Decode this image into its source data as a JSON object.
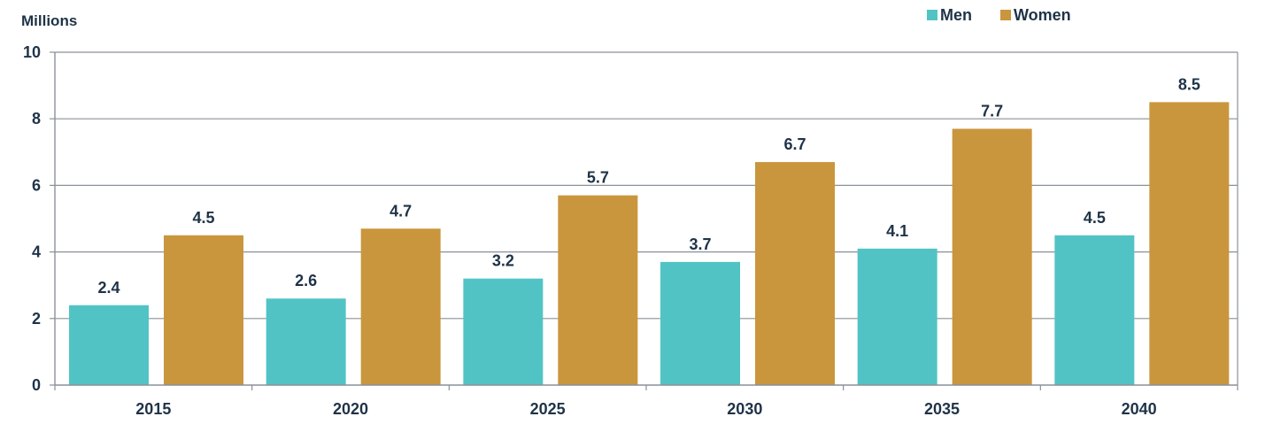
{
  "chart_data": {
    "type": "bar",
    "title": "",
    "xlabel": "",
    "ylabel": "Millions",
    "ylim": [
      0,
      10
    ],
    "yticks": [
      "0",
      "2",
      "4",
      "6",
      "8",
      "10"
    ],
    "categories": [
      "2015",
      "2020",
      "2025",
      "2030",
      "2035",
      "2040"
    ],
    "series": [
      {
        "name": "Men",
        "color": "#52c3c5",
        "values": [
          2.4,
          2.6,
          3.2,
          3.7,
          4.1,
          4.5
        ],
        "labels": [
          "2.4",
          "2.6",
          "3.2",
          "3.7",
          "4.1",
          "4.5"
        ]
      },
      {
        "name": "Women",
        "color": "#c9963d",
        "values": [
          4.5,
          4.7,
          5.7,
          6.7,
          7.7,
          8.5
        ],
        "labels": [
          "4.5",
          "4.7",
          "5.7",
          "6.7",
          "7.7",
          "8.5"
        ]
      }
    ],
    "grid": true,
    "legend_position": "top-right"
  }
}
